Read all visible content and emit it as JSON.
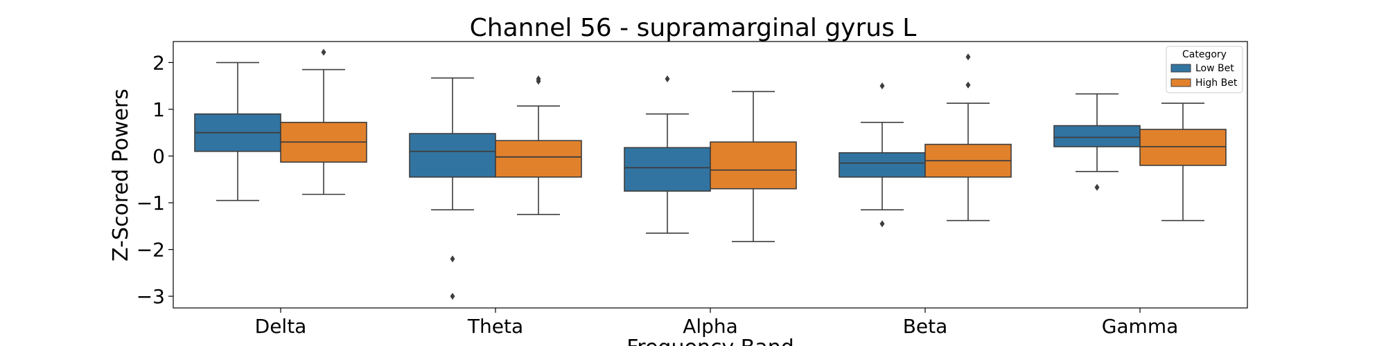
{
  "chart_data": {
    "type": "box",
    "title": "Channel 56 - supramarginal gyrus L",
    "xlabel": "Frequency Band",
    "ylabel": "Z-Scored Powers",
    "categories": [
      "Delta",
      "Theta",
      "Alpha",
      "Beta",
      "Gamma"
    ],
    "ylim": [
      -3.25,
      2.45
    ],
    "yticks": [
      -3,
      -2,
      -1,
      0,
      1,
      2
    ],
    "ytick_labels": [
      "−3",
      "−2",
      "−1",
      "0",
      "1",
      "2"
    ],
    "grid": false,
    "legend": {
      "title": "Category",
      "placement": "top-right"
    },
    "series": [
      {
        "name": "Low Bet",
        "color": "#3274a1",
        "boxes": [
          {
            "whisker_low": -0.95,
            "q1": 0.1,
            "median": 0.5,
            "q3": 0.9,
            "whisker_high": 2.0,
            "outliers": []
          },
          {
            "whisker_low": -1.15,
            "q1": -0.45,
            "median": 0.1,
            "q3": 0.48,
            "whisker_high": 1.67,
            "outliers": [
              -2.2,
              -3.0
            ]
          },
          {
            "whisker_low": -1.65,
            "q1": -0.75,
            "median": -0.25,
            "q3": 0.18,
            "whisker_high": 0.9,
            "outliers": [
              1.65
            ]
          },
          {
            "whisker_low": -1.15,
            "q1": -0.45,
            "median": -0.15,
            "q3": 0.07,
            "whisker_high": 0.72,
            "outliers": [
              1.5,
              -1.45
            ]
          },
          {
            "whisker_low": -0.33,
            "q1": 0.2,
            "median": 0.4,
            "q3": 0.65,
            "whisker_high": 1.33,
            "outliers": [
              -0.67
            ]
          }
        ]
      },
      {
        "name": "High Bet",
        "color": "#e1812c",
        "boxes": [
          {
            "whisker_low": -0.82,
            "q1": -0.13,
            "median": 0.3,
            "q3": 0.72,
            "whisker_high": 1.85,
            "outliers": [
              2.22
            ]
          },
          {
            "whisker_low": -1.25,
            "q1": -0.45,
            "median": -0.02,
            "q3": 0.33,
            "whisker_high": 1.07,
            "outliers": [
              1.6,
              1.65
            ]
          },
          {
            "whisker_low": -1.83,
            "q1": -0.7,
            "median": -0.3,
            "q3": 0.3,
            "whisker_high": 1.38,
            "outliers": []
          },
          {
            "whisker_low": -1.38,
            "q1": -0.45,
            "median": -0.1,
            "q3": 0.25,
            "whisker_high": 1.13,
            "outliers": [
              1.52,
              2.12
            ]
          },
          {
            "whisker_low": -1.38,
            "q1": -0.2,
            "median": 0.2,
            "q3": 0.57,
            "whisker_high": 1.13,
            "outliers": []
          }
        ]
      }
    ]
  }
}
